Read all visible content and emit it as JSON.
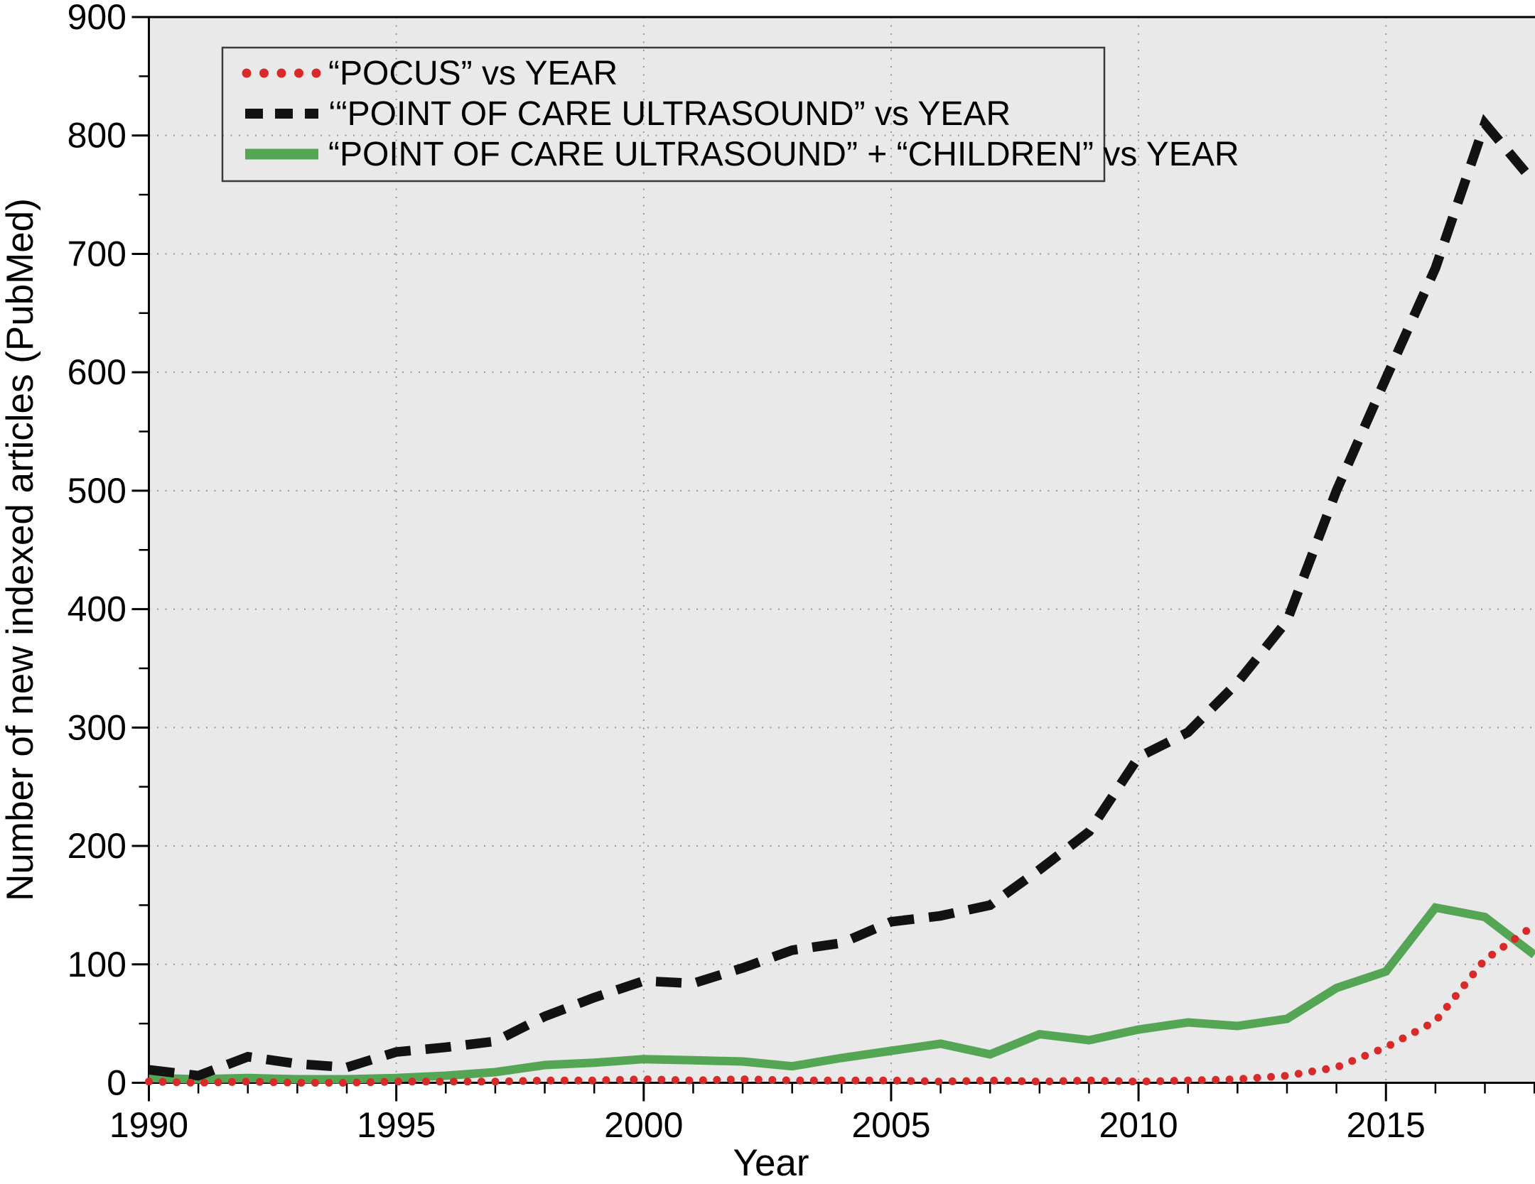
{
  "figure": {
    "xlabel": "Year",
    "ylabel": "Number of new indexed articles (PubMed)"
  },
  "chart_data": {
    "type": "line",
    "title": "",
    "xlabel": "Year",
    "ylabel": "Number of new indexed articles (PubMed)",
    "xlim": [
      1990,
      2018.8
    ],
    "ylim": [
      0,
      900
    ],
    "x_major_ticks": [
      1990,
      1995,
      2000,
      2005,
      2010,
      2015
    ],
    "x_minor_tick_step": 1,
    "y_major_ticks": [
      0,
      100,
      200,
      300,
      400,
      500,
      600,
      700,
      800,
      900
    ],
    "y_minor_tick_step": 50,
    "grid": "dotted-at-major-ticks",
    "plot_background": "#e9e9ea",
    "grid_color": "#999999",
    "legend_position": "top-left",
    "x": [
      1990,
      1991,
      1992,
      1993,
      1994,
      1995,
      1996,
      1997,
      1998,
      1999,
      2000,
      2001,
      2002,
      2003,
      2004,
      2005,
      2006,
      2007,
      2008,
      2009,
      2010,
      2011,
      2012,
      2013,
      2014,
      2015,
      2016,
      2017,
      2018
    ],
    "series": [
      {
        "name": "“POCUS” vs YEAR",
        "style": "dotted",
        "color": "#d92a2a",
        "values": [
          1,
          0,
          1,
          0,
          0,
          1,
          1,
          1,
          2,
          2,
          3,
          2,
          3,
          2,
          2,
          2,
          1,
          2,
          1,
          2,
          1,
          2,
          3,
          6,
          13,
          30,
          52,
          104,
          133
        ]
      },
      {
        "name": "‘“POINT OF CARE ULTRASOUND” vs YEAR",
        "style": "dashed",
        "color": "#121212",
        "values": [
          11,
          6,
          22,
          16,
          13,
          26,
          30,
          35,
          56,
          72,
          86,
          84,
          97,
          112,
          118,
          136,
          141,
          150,
          180,
          212,
          275,
          296,
          338,
          390,
          500,
          595,
          688,
          810,
          760
        ]
      },
      {
        "name": "“POINT OF CARE ULTRASOUND” + “CHILDREN” vs YEAR",
        "style": "solid",
        "color": "#54a654",
        "values": [
          4,
          3,
          4,
          3,
          3,
          4,
          6,
          9,
          15,
          17,
          20,
          19,
          18,
          14,
          21,
          27,
          33,
          24,
          41,
          36,
          45,
          51,
          48,
          54,
          80,
          94,
          148,
          140,
          108
        ]
      }
    ]
  }
}
